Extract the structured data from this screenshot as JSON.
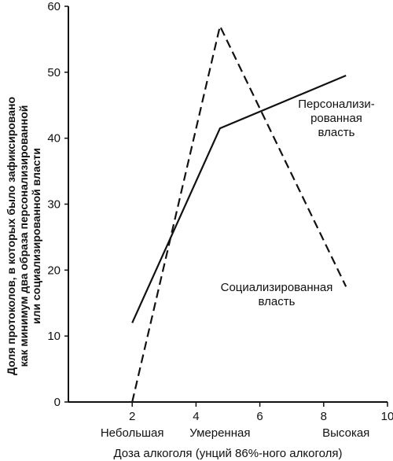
{
  "chart_data": {
    "type": "line",
    "xlabel": "Доза алкоголя (унций 86%-ного алкоголя)",
    "ylabel_lines": [
      "Доля протоколов, в которых было зафиксировано",
      "как минимум два образа персонализированной",
      "или социализированной власти"
    ],
    "xlim": [
      0,
      10
    ],
    "ylim": [
      0,
      60
    ],
    "xticks": [
      "2",
      "4",
      "6",
      "8",
      "10"
    ],
    "yticks": [
      "0",
      "10",
      "20",
      "30",
      "40",
      "50",
      "60"
    ],
    "categories": [
      {
        "x": 2,
        "label": "Небольшая"
      },
      {
        "x": 4.75,
        "label": "Умеренная"
      },
      {
        "x": 8.7,
        "label": "Высокая"
      }
    ],
    "series": [
      {
        "name_lines": [
          "Персонализи-",
          "рованная",
          "власть"
        ],
        "style": "solid",
        "points": [
          [
            2,
            12
          ],
          [
            4.75,
            41.5
          ],
          [
            8.7,
            49.5
          ]
        ]
      },
      {
        "name_lines": [
          "Социализированная",
          "власть"
        ],
        "style": "dashed",
        "points": [
          [
            2,
            0
          ],
          [
            4.75,
            57
          ],
          [
            8.7,
            17.5
          ]
        ]
      }
    ],
    "grid": false,
    "color": "#111111"
  }
}
